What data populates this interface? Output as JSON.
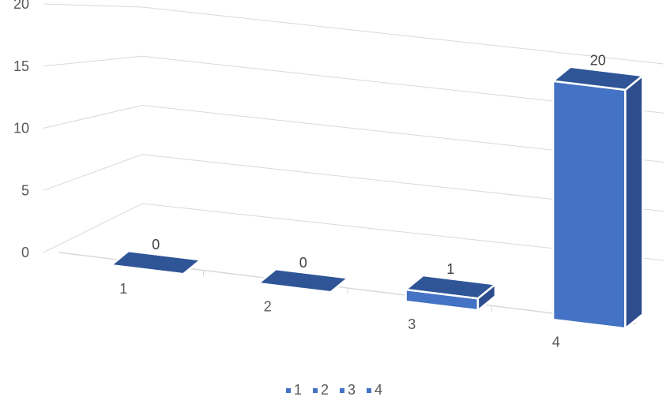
{
  "chart_data": {
    "type": "bar",
    "style": "3d-column",
    "categories": [
      "1",
      "2",
      "3",
      "4"
    ],
    "values": [
      0,
      0,
      1,
      20
    ],
    "data_labels": [
      "0",
      "0",
      "1",
      "20"
    ],
    "ylim": [
      0,
      20
    ],
    "yticks": [
      "0",
      "5",
      "10",
      "15",
      "20"
    ],
    "grid": true,
    "legend": {
      "position": "bottom",
      "entries": [
        "1",
        "2",
        "3",
        "4"
      ]
    },
    "colors": {
      "front": "#4472c4",
      "top": "#2f5597",
      "side": "#2e4d8f",
      "edge": "#ffffff",
      "grid": "#d9d9d9",
      "text": "#595959"
    }
  }
}
